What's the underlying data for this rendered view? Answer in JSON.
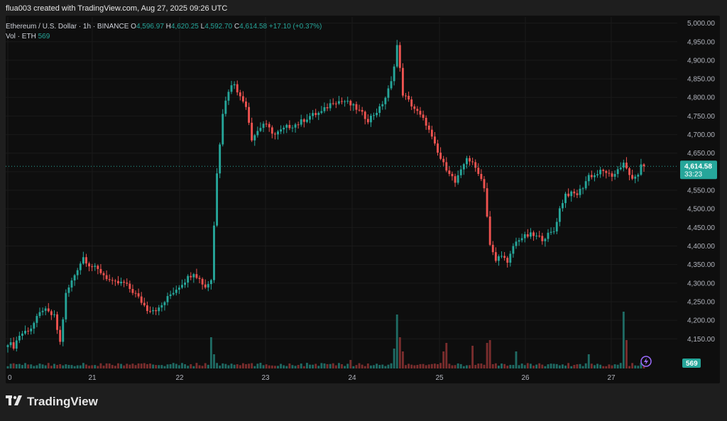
{
  "header": {
    "text": "flua003 created with TradingView.com, Aug 27, 2025 09:26 UTC"
  },
  "legend": {
    "symbol": "Ethereum / U.S. Dollar · 1h · BINANCE",
    "o_label": "O",
    "o_value": "4,596.97",
    "h_label": "H",
    "h_value": "4,620.25",
    "l_label": "L",
    "l_value": "4,592.70",
    "c_label": "C",
    "c_value": "4,614.58",
    "change": "+17.10 (+0.37%)",
    "vol_label": "Vol · ETH",
    "vol_value": "569"
  },
  "price_label": {
    "value": "4,614.58",
    "countdown": "33:23"
  },
  "volume_label": "569",
  "footer": {
    "brand": "TradingView"
  },
  "colors": {
    "up": "#26a69a",
    "down": "#ef5350",
    "up_vol": "#1f6b64",
    "down_vol": "#7a2d2d",
    "bg": "#0e0e0e",
    "grid": "#1a1a1a"
  },
  "chart_data": {
    "type": "candlestick",
    "title": "Ethereum / U.S. Dollar · 1h · BINANCE",
    "y_ticks": [
      "5,000.00",
      "4,950.00",
      "4,900.00",
      "4,850.00",
      "4,800.00",
      "4,750.00",
      "4,700.00",
      "4,650.00",
      "4,600.00",
      "4,550.00",
      "4,500.00",
      "4,450.00",
      "4,400.00",
      "4,350.00",
      "4,300.00",
      "4,250.00",
      "4,200.00",
      "4,150.00"
    ],
    "ylim": [
      4120,
      5005
    ],
    "x_ticks": [
      "0",
      "21",
      "22",
      "23",
      "24",
      "25",
      "26",
      "27"
    ],
    "grid": true,
    "last_price": 4614.58,
    "anchors": [
      [
        0,
        4140
      ],
      [
        2,
        4130
      ],
      [
        4,
        4160
      ],
      [
        8,
        4180
      ],
      [
        12,
        4230
      ],
      [
        16,
        4210
      ],
      [
        18,
        4140
      ],
      [
        20,
        4270
      ],
      [
        24,
        4340
      ],
      [
        26,
        4370
      ],
      [
        28,
        4350
      ],
      [
        32,
        4330
      ],
      [
        36,
        4300
      ],
      [
        40,
        4300
      ],
      [
        44,
        4270
      ],
      [
        48,
        4230
      ],
      [
        52,
        4230
      ],
      [
        56,
        4270
      ],
      [
        60,
        4300
      ],
      [
        64,
        4330
      ],
      [
        68,
        4290
      ],
      [
        70,
        4310
      ],
      [
        72,
        4600
      ],
      [
        74,
        4760
      ],
      [
        76,
        4820
      ],
      [
        78,
        4840
      ],
      [
        80,
        4800
      ],
      [
        82,
        4780
      ],
      [
        84,
        4690
      ],
      [
        88,
        4730
      ],
      [
        92,
        4700
      ],
      [
        96,
        4720
      ],
      [
        100,
        4730
      ],
      [
        104,
        4750
      ],
      [
        108,
        4760
      ],
      [
        112,
        4790
      ],
      [
        116,
        4790
      ],
      [
        120,
        4770
      ],
      [
        124,
        4740
      ],
      [
        128,
        4770
      ],
      [
        130,
        4800
      ],
      [
        132,
        4840
      ],
      [
        134,
        4940
      ],
      [
        136,
        4810
      ],
      [
        138,
        4790
      ],
      [
        140,
        4770
      ],
      [
        144,
        4730
      ],
      [
        146,
        4690
      ],
      [
        148,
        4650
      ],
      [
        150,
        4620
      ],
      [
        152,
        4600
      ],
      [
        154,
        4570
      ],
      [
        156,
        4600
      ],
      [
        158,
        4640
      ],
      [
        160,
        4620
      ],
      [
        162,
        4600
      ],
      [
        164,
        4560
      ],
      [
        166,
        4400
      ],
      [
        168,
        4360
      ],
      [
        170,
        4380
      ],
      [
        172,
        4350
      ],
      [
        174,
        4400
      ],
      [
        176,
        4420
      ],
      [
        180,
        4430
      ],
      [
        184,
        4420
      ],
      [
        188,
        4440
      ],
      [
        190,
        4500
      ],
      [
        192,
        4540
      ],
      [
        196,
        4540
      ],
      [
        198,
        4560
      ],
      [
        200,
        4590
      ],
      [
        202,
        4590
      ],
      [
        204,
        4600
      ],
      [
        206,
        4600
      ],
      [
        208,
        4580
      ],
      [
        210,
        4610
      ],
      [
        212,
        4620
      ],
      [
        214,
        4590
      ],
      [
        216,
        4580
      ],
      [
        218,
        4614.58
      ]
    ],
    "volume_spikes": [
      [
        70,
        0.55
      ],
      [
        71,
        0.25
      ],
      [
        118,
        0.15
      ],
      [
        133,
        0.35
      ],
      [
        134,
        0.95
      ],
      [
        135,
        0.55
      ],
      [
        136,
        0.3
      ],
      [
        150,
        0.3
      ],
      [
        151,
        0.45
      ],
      [
        160,
        0.4
      ],
      [
        165,
        0.45
      ],
      [
        166,
        0.5
      ],
      [
        175,
        0.3
      ],
      [
        200,
        0.25
      ],
      [
        212,
        1.0
      ],
      [
        213,
        0.5
      ]
    ]
  }
}
